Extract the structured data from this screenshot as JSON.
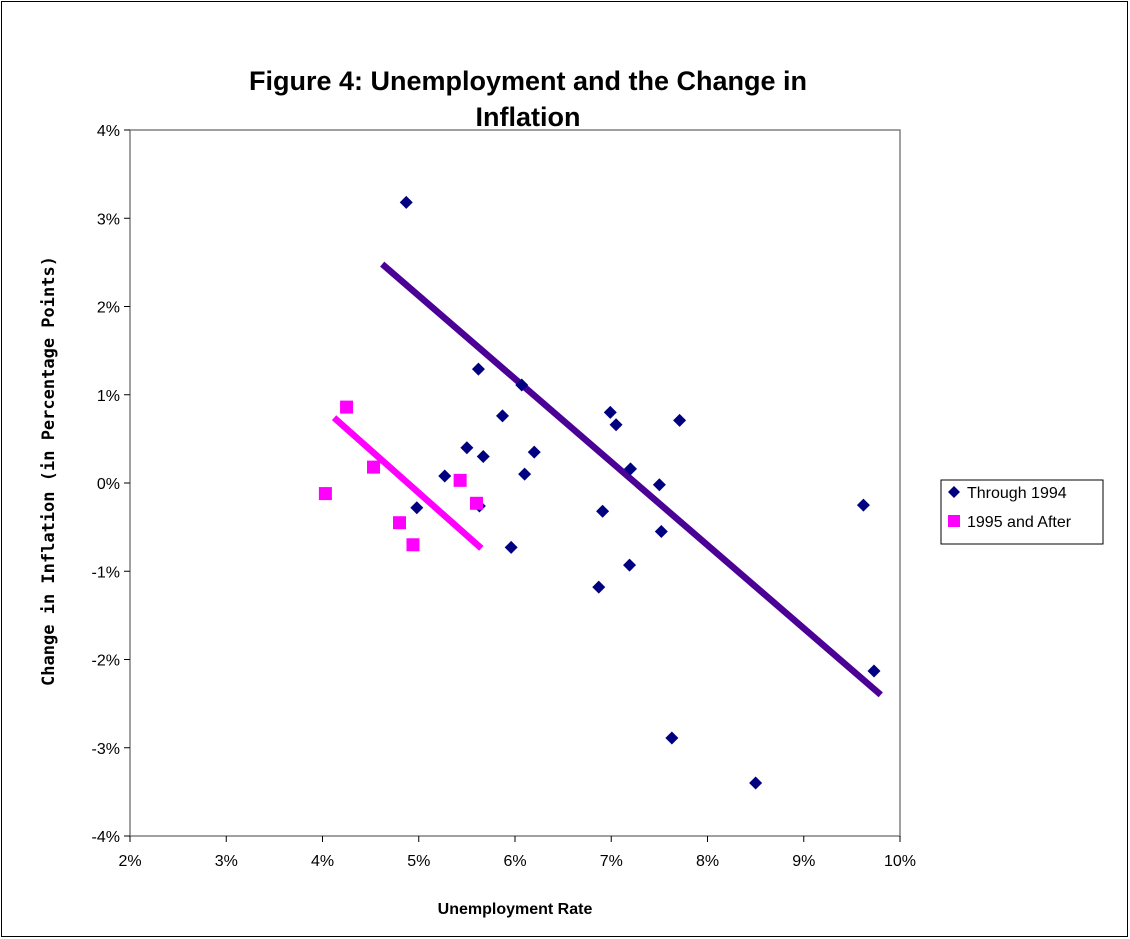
{
  "chart_data": {
    "type": "scatter",
    "title_lines": [
      "Figure 4: Unemployment and the Change in",
      "Inflation"
    ],
    "xlabel": "Unemployment Rate",
    "ylabel": "Change in Inflation (in Percentage Points)",
    "xlim": [
      2,
      10
    ],
    "ylim": [
      -4,
      4
    ],
    "x_ticks": [
      2,
      3,
      4,
      5,
      6,
      7,
      8,
      9,
      10
    ],
    "x_tick_labels": [
      "2%",
      "3%",
      "4%",
      "5%",
      "6%",
      "7%",
      "8%",
      "9%",
      "10%"
    ],
    "y_ticks": [
      4,
      3,
      2,
      1,
      0,
      -1,
      -2,
      -3,
      -4
    ],
    "y_tick_labels": [
      "4%",
      "3%",
      "2%",
      "1%",
      "0%",
      "-1%",
      "-2%",
      "-3%",
      "-4%"
    ],
    "grid": false,
    "legend_position": "right",
    "series": [
      {
        "name": "Through 1994",
        "marker": "diamond",
        "color": "#000080",
        "points": [
          [
            4.87,
            3.18
          ],
          [
            5.62,
            1.29
          ],
          [
            6.07,
            1.11
          ],
          [
            5.87,
            0.76
          ],
          [
            6.99,
            0.8
          ],
          [
            7.05,
            0.66
          ],
          [
            7.71,
            0.71
          ],
          [
            5.5,
            0.4
          ],
          [
            5.67,
            0.3
          ],
          [
            6.2,
            0.35
          ],
          [
            5.27,
            0.08
          ],
          [
            6.1,
            0.1
          ],
          [
            7.2,
            0.16
          ],
          [
            7.5,
            -0.02
          ],
          [
            4.98,
            -0.28
          ],
          [
            5.63,
            -0.26
          ],
          [
            6.91,
            -0.32
          ],
          [
            9.62,
            -0.25
          ],
          [
            7.52,
            -0.55
          ],
          [
            5.96,
            -0.73
          ],
          [
            7.19,
            -0.93
          ],
          [
            6.87,
            -1.18
          ],
          [
            9.73,
            -2.13
          ],
          [
            7.63,
            -2.89
          ],
          [
            8.5,
            -3.4
          ]
        ],
        "trendline": {
          "from": [
            4.62,
            2.48
          ],
          "to": [
            9.8,
            -2.4
          ],
          "color": "#4b0096"
        }
      },
      {
        "name": "1995 and After",
        "marker": "square",
        "color": "#ff00ff",
        "points": [
          [
            4.03,
            -0.12
          ],
          [
            4.25,
            0.86
          ],
          [
            4.53,
            0.18
          ],
          [
            4.8,
            -0.45
          ],
          [
            4.94,
            -0.7
          ],
          [
            5.43,
            0.03
          ],
          [
            5.6,
            -0.23
          ]
        ],
        "trendline": {
          "from": [
            4.12,
            0.74
          ],
          "to": [
            5.65,
            -0.74
          ],
          "color": "#ff00ff"
        }
      }
    ]
  }
}
